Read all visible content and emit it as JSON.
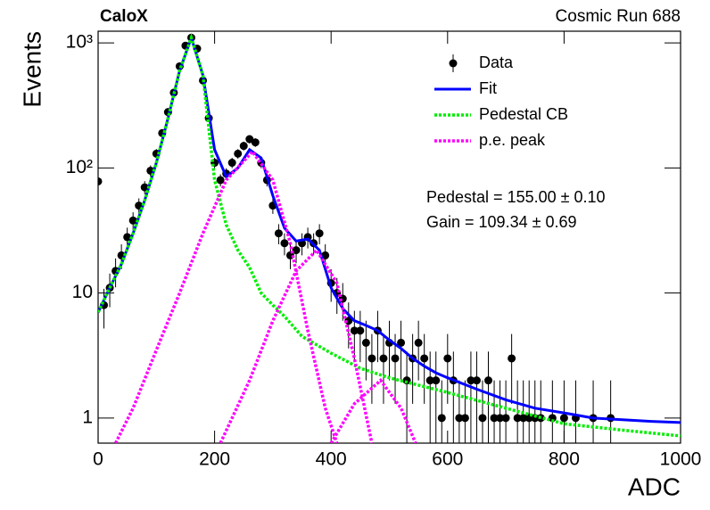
{
  "chart_data": {
    "type": "histfit",
    "title": "CaloX",
    "subtitle": "Cosmic Run 688",
    "x_label": "ADC",
    "y_label": "Events",
    "log_y": true,
    "xlim": [
      0,
      1000
    ],
    "ylim": [
      0.63,
      1240
    ],
    "xticks": [
      0,
      200,
      400,
      600,
      800,
      1000
    ],
    "yticks": [
      1,
      10,
      {
        "value": 100,
        "label": "10²"
      },
      {
        "value": 1000,
        "label": "10³"
      }
    ],
    "annotations": [
      "Pedestal = 155.00 ± 0.10",
      "Gain = 109.34 ± 0.69"
    ],
    "series": [
      {
        "name": "Data",
        "style": "points",
        "color": "#000000",
        "x": [
          0,
          10,
          20,
          30,
          40,
          50,
          60,
          70,
          80,
          90,
          100,
          110,
          120,
          130,
          140,
          150,
          160,
          170,
          180,
          190,
          200,
          210,
          220,
          230,
          240,
          250,
          260,
          270,
          280,
          290,
          300,
          310,
          320,
          330,
          340,
          350,
          360,
          370,
          380,
          390,
          400,
          410,
          420,
          430,
          440,
          450,
          460,
          470,
          480,
          490,
          500,
          510,
          520,
          530,
          540,
          550,
          560,
          570,
          580,
          590,
          600,
          610,
          620,
          630,
          640,
          650,
          660,
          670,
          680,
          690,
          700,
          710,
          720,
          730,
          740,
          750,
          760,
          780,
          800,
          820,
          850,
          880
        ],
        "values": [
          78,
          8,
          11,
          15,
          20,
          28,
          38,
          50,
          70,
          95,
          130,
          190,
          280,
          400,
          650,
          950,
          1100,
          900,
          500,
          250,
          110,
          80,
          90,
          110,
          130,
          150,
          170,
          160,
          110,
          80,
          50,
          30,
          25,
          20,
          22,
          25,
          28,
          25,
          30,
          20,
          12,
          10,
          9,
          6,
          5,
          5,
          4,
          3,
          5,
          3,
          4,
          3,
          4,
          2,
          3,
          4,
          3,
          2,
          2,
          1,
          3,
          2,
          1,
          1,
          2,
          2,
          1,
          2,
          1,
          1,
          1,
          3,
          1,
          1,
          1,
          1,
          1,
          1,
          1,
          1,
          1,
          1
        ],
        "errors": [
          8.8,
          2.8,
          3.3,
          3.9,
          4.5,
          5.3,
          6.2,
          7.1,
          8.4,
          9.7,
          11.4,
          13.8,
          16.7,
          20,
          25.5,
          30.8,
          33.2,
          30,
          22.4,
          15.8,
          10.5,
          8.9,
          9.5,
          10.5,
          11.4,
          12.2,
          13,
          12.6,
          10.5,
          8.9,
          7.1,
          5.5,
          5,
          4.5,
          4.7,
          5,
          5.3,
          5,
          5.5,
          4.5,
          3.5,
          3.2,
          3,
          2.4,
          2.2,
          2.2,
          2,
          1.7,
          2.2,
          1.7,
          2,
          1.7,
          2,
          1.4,
          1.7,
          2,
          1.7,
          1.4,
          1.4,
          1,
          1.7,
          1.4,
          1,
          1,
          1.4,
          1.4,
          1,
          1.4,
          1,
          1,
          1,
          1.7,
          1,
          1,
          1,
          1,
          1,
          1,
          1,
          1,
          1,
          1
        ]
      },
      {
        "name": "Fit",
        "style": "line",
        "color": "#0000ff",
        "x": [
          0,
          20,
          40,
          60,
          80,
          100,
          120,
          140,
          160,
          180,
          200,
          220,
          240,
          260,
          280,
          300,
          320,
          340,
          360,
          380,
          400,
          420,
          440,
          460,
          480,
          500,
          520,
          540,
          560,
          580,
          600,
          650,
          700,
          750,
          800,
          850,
          900,
          950,
          1000
        ],
        "values": [
          7,
          11,
          17,
          30,
          55,
          110,
          250,
          600,
          1100,
          550,
          140,
          85,
          100,
          140,
          120,
          60,
          33,
          26,
          27,
          22,
          11,
          7.5,
          6,
          5.5,
          5,
          4.2,
          3.6,
          3,
          2.6,
          2.3,
          2.1,
          1.7,
          1.4,
          1.2,
          1.1,
          1.0,
          0.97,
          0.94,
          0.92
        ]
      },
      {
        "name": "Pedestal CB",
        "style": "dotted",
        "color": "#00ee00",
        "x": [
          0,
          20,
          40,
          60,
          80,
          100,
          120,
          140,
          160,
          180,
          200,
          220,
          240,
          260,
          280,
          300,
          320,
          350,
          400,
          450,
          500,
          600,
          700,
          800,
          900,
          1000
        ],
        "values": [
          7,
          11,
          17,
          30,
          55,
          110,
          250,
          600,
          1100,
          550,
          80,
          35,
          22,
          16,
          10,
          8,
          6.5,
          4.5,
          3.3,
          2.5,
          2.1,
          1.6,
          1.2,
          0.9,
          0.8,
          0.72
        ]
      },
      {
        "name": "p.e. peak",
        "style": "dotted",
        "color": "#ff00ff",
        "components": [
          {
            "x": [
              30,
              60,
              100,
              140,
              180,
              220,
              265,
              300,
              330,
              360,
              390,
              410
            ],
            "values": [
              0.63,
              1.2,
              3.5,
              10,
              30,
              80,
              135,
              80,
              25,
              5,
              1.2,
              0.63
            ]
          },
          {
            "x": [
              210,
              260,
              300,
              340,
              375,
              410,
              440,
              470
            ],
            "values": [
              0.63,
              2,
              6,
              15,
              22,
              12,
              3,
              0.63
            ]
          },
          {
            "x": [
              400,
              440,
              485,
              520,
              545
            ],
            "values": [
              0.63,
              1.3,
              2,
              1.2,
              0.63
            ]
          }
        ]
      }
    ]
  }
}
